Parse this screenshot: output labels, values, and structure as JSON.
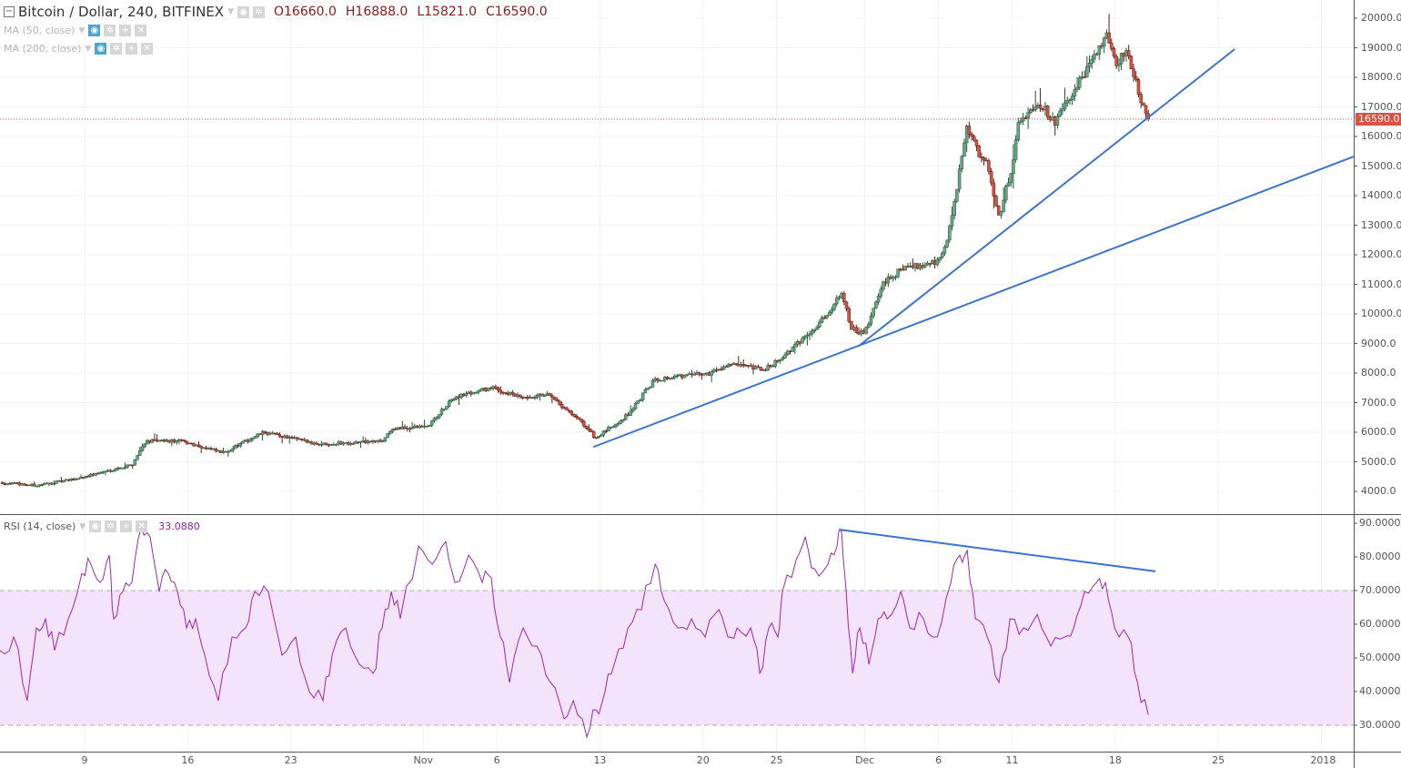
{
  "header": {
    "symbol": "Bitcoin / Dollar, 240, BITFINEX",
    "open": "O16660.0",
    "high": "H16888.0",
    "low": "L15821.0",
    "close": "C16590.0"
  },
  "indicators": [
    {
      "label": "MA (50, close)"
    },
    {
      "label": "MA (200, close)"
    },
    {
      "label": "RSI (14, close)",
      "value": "33.0880"
    }
  ],
  "last_price_label": "16590.0",
  "colors": {
    "up": "#6ba583",
    "down": "#d75442",
    "trendline": "#3d73c9",
    "rsi": "#9c27b0",
    "rsi_band": "#f3e3fb",
    "last_price": "#d75442"
  },
  "chart_data": [
    {
      "type": "candlestick",
      "title": "Bitcoin / Dollar, 240, BITFINEX",
      "x_unit": "days since 2017-10-01",
      "xlim": [
        2.25,
        94.2
      ],
      "ylim": [
        3500,
        20600
      ],
      "y_ticks": [
        "20000.0",
        "19000.0",
        "18000.0",
        "17000.0",
        "16000.0",
        "15000.0",
        "14000.0",
        "13000.0",
        "12000.0",
        "11000.0",
        "10000.0",
        "9000.0",
        "8000.0",
        "7000.0",
        "6000.0",
        "5000.0",
        "4000.0"
      ],
      "x_ticks": [
        {
          "label": "9",
          "day": 8
        },
        {
          "label": "16",
          "day": 15
        },
        {
          "label": "23",
          "day": 22
        },
        {
          "label": "Nov",
          "day": 31
        },
        {
          "label": "6",
          "day": 36
        },
        {
          "label": "13",
          "day": 43
        },
        {
          "label": "20",
          "day": 50
        },
        {
          "label": "25",
          "day": 55
        },
        {
          "label": "Dec",
          "day": 61
        },
        {
          "label": "6",
          "day": 66
        },
        {
          "label": "11",
          "day": 71
        },
        {
          "label": "18",
          "day": 78
        },
        {
          "label": "25",
          "day": 85
        },
        {
          "label": "2018",
          "day": 92
        }
      ],
      "last_price": 16590,
      "close_path": [
        [
          2.25,
          4300
        ],
        [
          4.72,
          4200
        ],
        [
          7.19,
          4400
        ],
        [
          11.21,
          4900
        ],
        [
          12.14,
          5700
        ],
        [
          14.61,
          5700
        ],
        [
          17.39,
          5300
        ],
        [
          20.17,
          6000
        ],
        [
          23.88,
          5600
        ],
        [
          28.21,
          5700
        ],
        [
          28.83,
          6100
        ],
        [
          31.3,
          6200
        ],
        [
          33.15,
          7200
        ],
        [
          35.62,
          7500
        ],
        [
          38.1,
          7100
        ],
        [
          39.33,
          7300
        ],
        [
          41.8,
          6300
        ],
        [
          42.73,
          5800
        ],
        [
          44.9,
          6600
        ],
        [
          46.75,
          7800
        ],
        [
          50.46,
          8000
        ],
        [
          51.69,
          8300
        ],
        [
          54.17,
          8100
        ],
        [
          56.02,
          8800
        ],
        [
          58.49,
          10000
        ],
        [
          59.42,
          10800
        ],
        [
          60.04,
          9500
        ],
        [
          60.96,
          9300
        ],
        [
          62.2,
          11000
        ],
        [
          63.44,
          11500
        ],
        [
          65.91,
          11800
        ],
        [
          66.53,
          12300
        ],
        [
          67.15,
          14000
        ],
        [
          67.95,
          16300
        ],
        [
          68.69,
          15500
        ],
        [
          69.31,
          15000
        ],
        [
          70.11,
          13300
        ],
        [
          70.98,
          15000
        ],
        [
          71.47,
          16500
        ],
        [
          72.71,
          17200
        ],
        [
          73.94,
          16500
        ],
        [
          75.18,
          17500
        ],
        [
          76.42,
          18500
        ],
        [
          77.34,
          19500
        ],
        [
          77.96,
          18500
        ],
        [
          78.89,
          18800
        ],
        [
          79.51,
          17600
        ],
        [
          80.25,
          16590
        ]
      ],
      "trendlines": [
        {
          "from": [
            42.55,
            5500
          ],
          "to": [
            94.2,
            15320
          ]
        },
        {
          "from": [
            60.59,
            8920
          ],
          "to": [
            86.12,
            18954
          ]
        }
      ]
    },
    {
      "type": "line",
      "title": "RSI (14, close)",
      "x_unit": "days since 2017-10-01",
      "ylim": [
        25,
        91.5
      ],
      "y_ticks": [
        "90.0000",
        "80.0000",
        "70.0000",
        "60.0000",
        "50.0000",
        "40.0000",
        "30.0000"
      ],
      "band": [
        30,
        70
      ],
      "series": [
        [
          2.25,
          52.2
        ],
        [
          3.18,
          56.2
        ],
        [
          4.1,
          37.3
        ],
        [
          4.72,
          58.9
        ],
        [
          5.34,
          61.6
        ],
        [
          5.96,
          52.2
        ],
        [
          6.89,
          61.6
        ],
        [
          7.81,
          75.1
        ],
        [
          8.43,
          77.8
        ],
        [
          9.05,
          72.4
        ],
        [
          9.67,
          80.5
        ],
        [
          9.98,
          61.6
        ],
        [
          10.59,
          69.7
        ],
        [
          11.21,
          72.4
        ],
        [
          11.83,
          88.6
        ],
        [
          12.45,
          85.9
        ],
        [
          13.07,
          69.7
        ],
        [
          13.68,
          75.1
        ],
        [
          14.3,
          69.7
        ],
        [
          14.92,
          58.9
        ],
        [
          15.54,
          61.6
        ],
        [
          16.16,
          50.8
        ],
        [
          17.08,
          37.3
        ],
        [
          18.01,
          56.2
        ],
        [
          18.94,
          58.9
        ],
        [
          19.56,
          69.7
        ],
        [
          20.48,
          69.7
        ],
        [
          21.41,
          50.8
        ],
        [
          22.34,
          56.2
        ],
        [
          23.26,
          40.0
        ],
        [
          24.19,
          37.3
        ],
        [
          24.81,
          50.8
        ],
        [
          25.74,
          58.9
        ],
        [
          26.66,
          48.1
        ],
        [
          27.59,
          45.4
        ],
        [
          28.21,
          58.9
        ],
        [
          28.83,
          69.7
        ],
        [
          29.44,
          61.6
        ],
        [
          30.68,
          83.2
        ],
        [
          31.61,
          77.8
        ],
        [
          32.53,
          84.6
        ],
        [
          33.15,
          72.4
        ],
        [
          34.08,
          80.5
        ],
        [
          35.01,
          72.4
        ],
        [
          35.62,
          73.8
        ],
        [
          36.24,
          56.2
        ],
        [
          36.86,
          42.7
        ],
        [
          37.79,
          58.9
        ],
        [
          38.71,
          53.5
        ],
        [
          39.64,
          42.7
        ],
        [
          40.57,
          31.9
        ],
        [
          41.19,
          37.3
        ],
        [
          42.11,
          26.5
        ],
        [
          42.73,
          34.6
        ],
        [
          43.35,
          40.0
        ],
        [
          43.97,
          48.1
        ],
        [
          44.9,
          58.9
        ],
        [
          45.82,
          64.3
        ],
        [
          46.75,
          77.8
        ],
        [
          47.37,
          67.0
        ],
        [
          48.3,
          58.9
        ],
        [
          49.22,
          61.6
        ],
        [
          50.15,
          56.2
        ],
        [
          51.08,
          64.3
        ],
        [
          51.69,
          56.2
        ],
        [
          52.31,
          58.9
        ],
        [
          53.24,
          58.9
        ],
        [
          53.86,
          45.4
        ],
        [
          54.47,
          58.9
        ],
        [
          55.09,
          56.2
        ],
        [
          55.4,
          69.7
        ],
        [
          56.33,
          79.2
        ],
        [
          56.95,
          85.9
        ],
        [
          57.57,
          76.5
        ],
        [
          58.49,
          77.8
        ],
        [
          59.11,
          83.2
        ],
        [
          59.42,
          87.3
        ],
        [
          59.73,
          69.7
        ],
        [
          60.16,
          45.4
        ],
        [
          60.66,
          58.9
        ],
        [
          61.27,
          48.1
        ],
        [
          61.89,
          61.6
        ],
        [
          62.51,
          61.6
        ],
        [
          63.44,
          69.7
        ],
        [
          64.05,
          58.9
        ],
        [
          64.98,
          61.6
        ],
        [
          65.91,
          56.2
        ],
        [
          66.84,
          72.4
        ],
        [
          67.45,
          80.5
        ],
        [
          67.95,
          81.9
        ],
        [
          68.51,
          61.6
        ],
        [
          69.31,
          56.2
        ],
        [
          70.11,
          42.7
        ],
        [
          70.85,
          61.6
        ],
        [
          71.78,
          58.9
        ],
        [
          72.71,
          62.9
        ],
        [
          73.63,
          53.5
        ],
        [
          74.56,
          56.2
        ],
        [
          75.18,
          58.9
        ],
        [
          75.92,
          69.7
        ],
        [
          76.73,
          72.4
        ],
        [
          77.34,
          72.4
        ],
        [
          77.96,
          58.9
        ],
        [
          78.89,
          56.2
        ],
        [
          79.51,
          42.7
        ],
        [
          80.25,
          33.1
        ]
      ],
      "trendline": {
        "from": [
          59.24,
          88.1
        ],
        "to": [
          80.74,
          75.7
        ]
      }
    }
  ]
}
